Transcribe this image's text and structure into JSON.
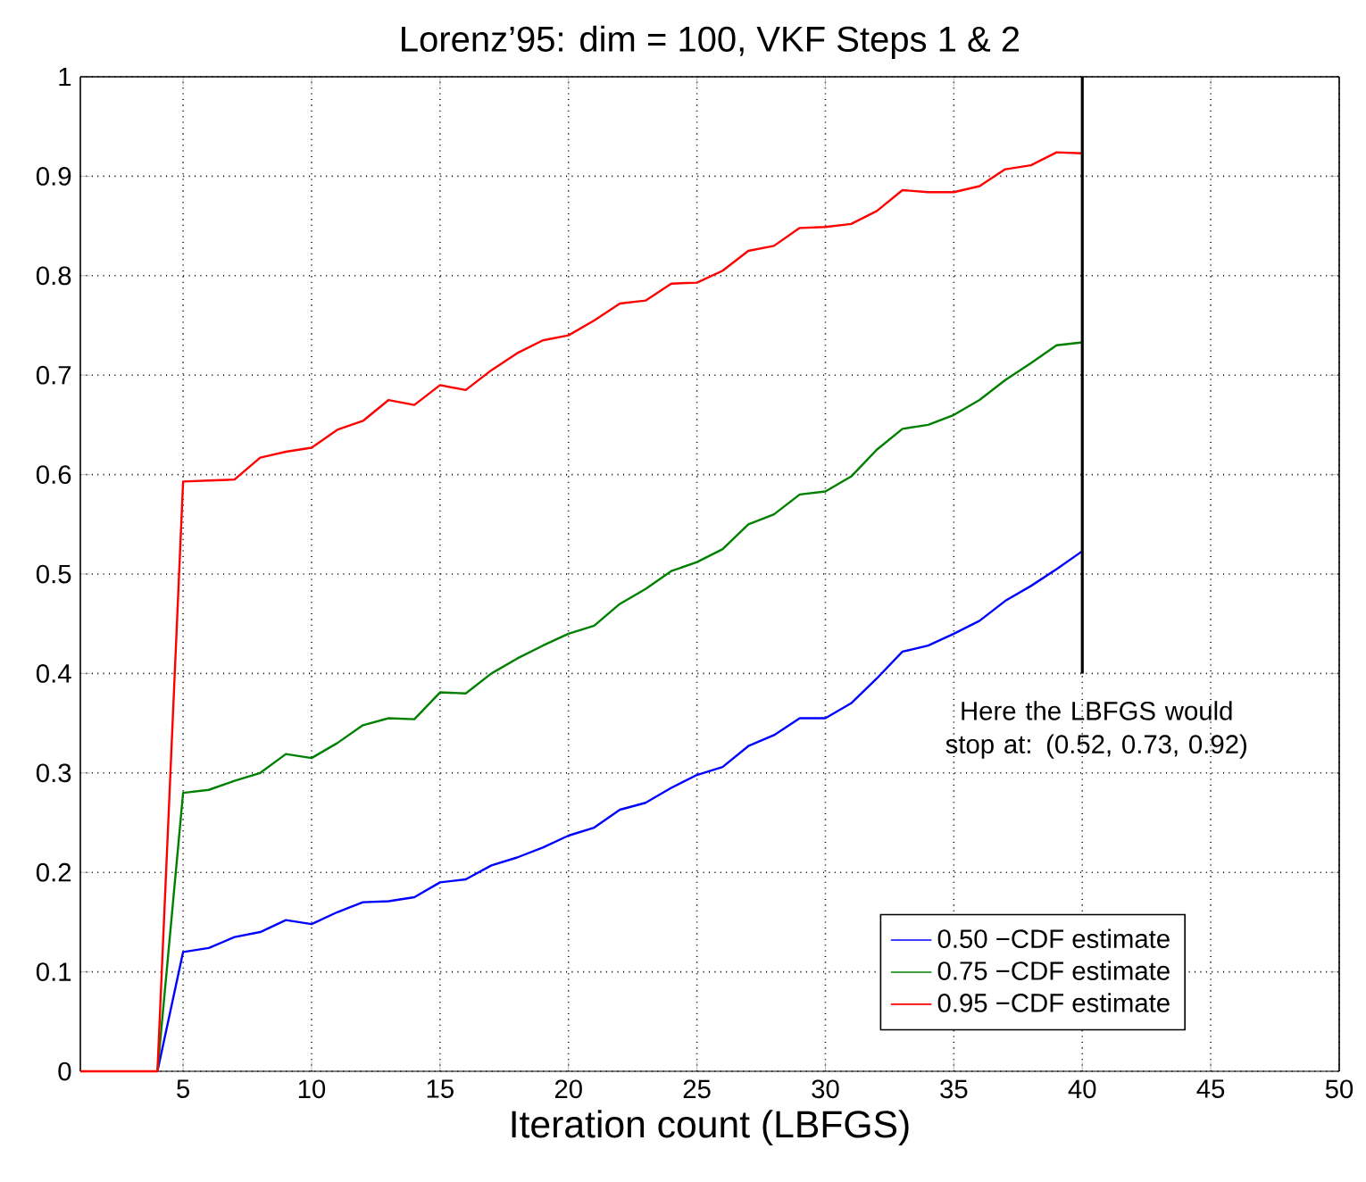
{
  "chart_data": {
    "type": "line",
    "title": "Lorenz’95: dim = 100, VKF Steps 1 & 2",
    "xlabel": "Iteration count (LBFGS)",
    "x": [
      1,
      2,
      3,
      4,
      5,
      6,
      7,
      8,
      9,
      10,
      11,
      12,
      13,
      14,
      15,
      16,
      17,
      18,
      19,
      20,
      21,
      22,
      23,
      24,
      25,
      26,
      27,
      28,
      29,
      30,
      31,
      32,
      33,
      34,
      35,
      36,
      37,
      38,
      39,
      40
    ],
    "series": [
      {
        "name": "0.50 −CDF estimate",
        "color": "#0000ff",
        "values": [
          null,
          null,
          null,
          0,
          0.12,
          0.124,
          0.135,
          0.14,
          0.152,
          0.148,
          0.16,
          0.17,
          0.171,
          0.175,
          0.19,
          0.193,
          0.207,
          0.215,
          0.225,
          0.237,
          0.245,
          0.263,
          0.27,
          0.285,
          0.298,
          0.306,
          0.327,
          0.338,
          0.355,
          0.355,
          0.37,
          0.395,
          0.422,
          0.428,
          0.44,
          0.453,
          0.473,
          0.488,
          0.505,
          0.523
        ]
      },
      {
        "name": "0.75 −CDF estimate",
        "color": "#008000",
        "values": [
          null,
          null,
          null,
          0,
          0.28,
          0.283,
          0.292,
          0.3,
          0.319,
          0.315,
          0.33,
          0.348,
          0.355,
          0.354,
          0.381,
          0.38,
          0.4,
          0.415,
          0.428,
          0.44,
          0.448,
          0.47,
          0.485,
          0.503,
          0.512,
          0.525,
          0.55,
          0.56,
          0.58,
          0.583,
          0.598,
          0.625,
          0.646,
          0.65,
          0.66,
          0.675,
          0.695,
          0.712,
          0.73,
          0.733
        ]
      },
      {
        "name": "0.95 −CDF estimate",
        "color": "#ff0000",
        "values": [
          0,
          0,
          0,
          0,
          0.593,
          0.594,
          0.595,
          0.617,
          0.623,
          0.627,
          0.645,
          0.654,
          0.675,
          0.67,
          0.69,
          0.685,
          0.705,
          0.722,
          0.735,
          0.74,
          0.755,
          0.772,
          0.775,
          0.792,
          0.793,
          0.805,
          0.825,
          0.83,
          0.848,
          0.849,
          0.852,
          0.865,
          0.886,
          0.884,
          0.884,
          0.89,
          0.907,
          0.911,
          0.924,
          0.923
        ]
      }
    ],
    "xlim": [
      1,
      50
    ],
    "ylim": [
      0,
      1
    ],
    "xticks": [
      5,
      10,
      15,
      20,
      25,
      30,
      35,
      40,
      45,
      50
    ],
    "yticks": [
      0,
      0.1,
      0.2,
      0.3,
      0.4,
      0.5,
      0.6,
      0.7,
      0.8,
      0.9,
      1
    ],
    "ref_lines": [
      {
        "axis": "x",
        "value": 40,
        "label": "Here the LBFGS would stop at: (0.52, 0.73, 0.92)",
        "color": "#000000"
      }
    ],
    "grid": true,
    "legend": "bottom right",
    "marker": "none",
    "line_style": "solid"
  }
}
